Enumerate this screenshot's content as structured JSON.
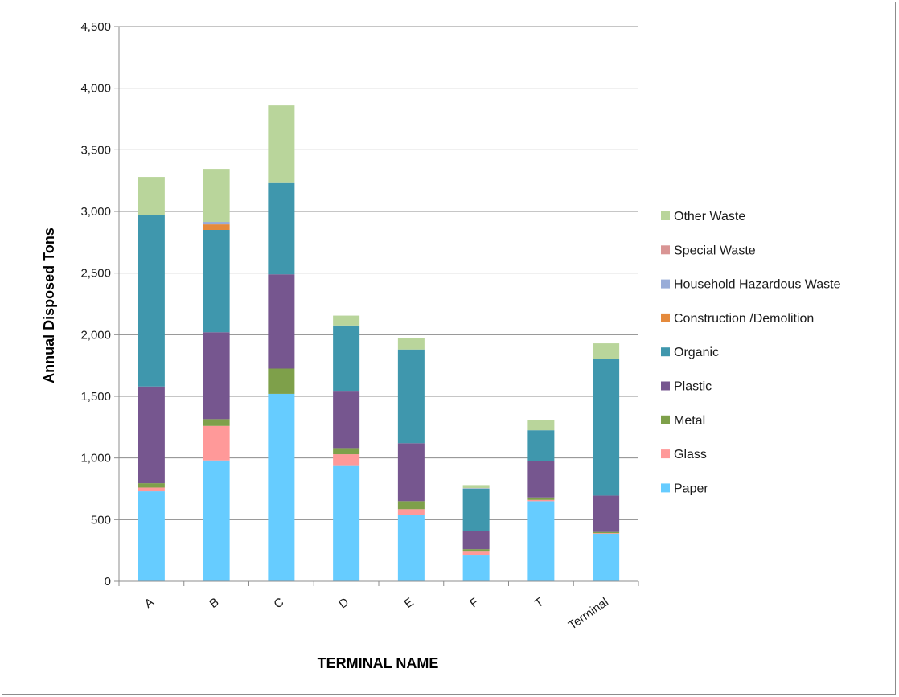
{
  "chart_data": {
    "type": "bar",
    "stacked": true,
    "categories": [
      "A",
      "B",
      "C",
      "D",
      "E",
      "F",
      "T",
      "Terminal"
    ],
    "xlabel": "TERMINAL NAME",
    "ylabel": "Annual Disposed Tons",
    "ylim": [
      0,
      4500
    ],
    "yticks": [
      0,
      500,
      1000,
      1500,
      2000,
      2500,
      3000,
      3500,
      4000,
      4500
    ],
    "ytick_labels": [
      "0",
      "500",
      "1,000",
      "1,500",
      "2,000",
      "2,500",
      "3,000",
      "3,500",
      "4,000",
      "4,500"
    ],
    "grid": true,
    "legend_position": "right",
    "series": [
      {
        "name": "Paper",
        "color": "#66ccff",
        "values": [
          730,
          980,
          1520,
          935,
          540,
          215,
          650,
          385
        ]
      },
      {
        "name": "Glass",
        "color": "#ff9999",
        "values": [
          30,
          280,
          0,
          95,
          45,
          25,
          10,
          5
        ]
      },
      {
        "name": "Metal",
        "color": "#7ea04a",
        "values": [
          35,
          55,
          205,
          50,
          65,
          20,
          20,
          10
        ]
      },
      {
        "name": "Plastic",
        "color": "#76568f",
        "values": [
          785,
          705,
          765,
          465,
          470,
          150,
          295,
          295
        ]
      },
      {
        "name": "Organic",
        "color": "#3f97ad",
        "values": [
          1390,
          830,
          740,
          530,
          760,
          340,
          250,
          1110
        ]
      },
      {
        "name": "Construction /Demolition",
        "color": "#e58a3c",
        "values": [
          0,
          45,
          0,
          0,
          0,
          0,
          0,
          0
        ]
      },
      {
        "name": "Household Hazardous Waste",
        "color": "#98acd8",
        "values": [
          0,
          20,
          0,
          0,
          0,
          5,
          0,
          0
        ]
      },
      {
        "name": "Special Waste",
        "color": "#d99594",
        "values": [
          0,
          0,
          0,
          0,
          0,
          0,
          0,
          0
        ]
      },
      {
        "name": "Other Waste",
        "color": "#b9d59b",
        "values": [
          310,
          430,
          630,
          80,
          90,
          25,
          85,
          125
        ]
      }
    ]
  }
}
